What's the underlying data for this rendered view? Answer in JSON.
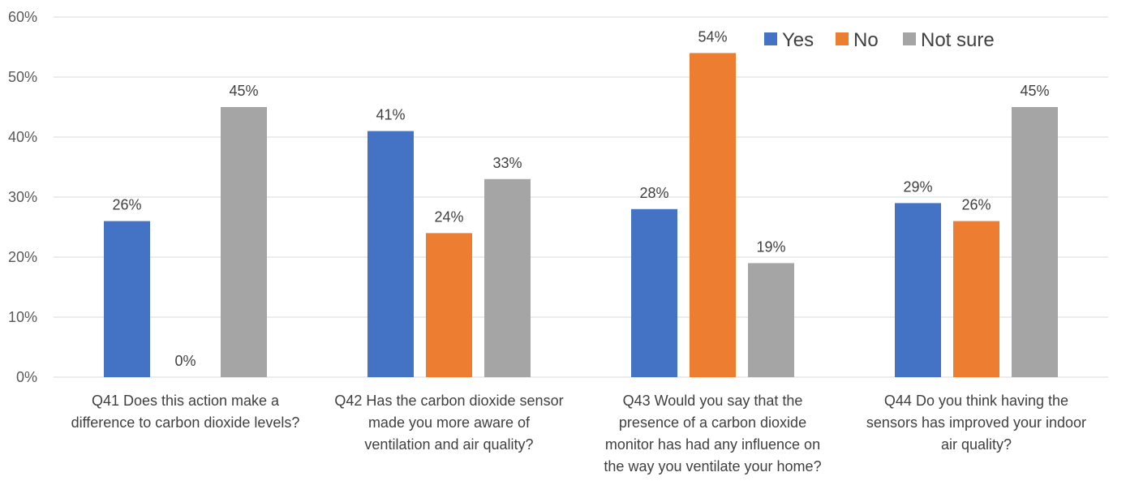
{
  "chart_data": {
    "type": "bar",
    "categories": [
      [
        "Q41 Does this action make a",
        "difference to carbon dioxide levels?"
      ],
      [
        "Q42 Has the carbon dioxide sensor",
        "made you more aware of",
        "ventilation and air quality?"
      ],
      [
        "Q43 Would you say that the",
        "presence of a carbon dioxide",
        "monitor has had any influence on",
        "the way you ventilate your home?"
      ],
      [
        "Q44 Do you think having the",
        "sensors has improved your indoor",
        "air quality?"
      ]
    ],
    "series": [
      {
        "name": "Yes",
        "color": "#4472c4",
        "values": [
          26,
          41,
          28,
          29
        ],
        "labels": [
          "26%",
          "41%",
          "28%",
          "29%"
        ]
      },
      {
        "name": "No",
        "color": "#ed7d31",
        "values": [
          0,
          24,
          54,
          26
        ],
        "labels": [
          "0%",
          "24%",
          "54%",
          "26%"
        ]
      },
      {
        "name": "Not sure",
        "color": "#a5a5a5",
        "values": [
          45,
          33,
          19,
          45
        ],
        "labels": [
          "45%",
          "33%",
          "19%",
          "45%"
        ]
      }
    ],
    "y_ticks": [
      "0%",
      "10%",
      "20%",
      "30%",
      "40%",
      "50%",
      "60%"
    ],
    "ylim": [
      0,
      60
    ],
    "grid": true,
    "legend_position": "top-right"
  }
}
